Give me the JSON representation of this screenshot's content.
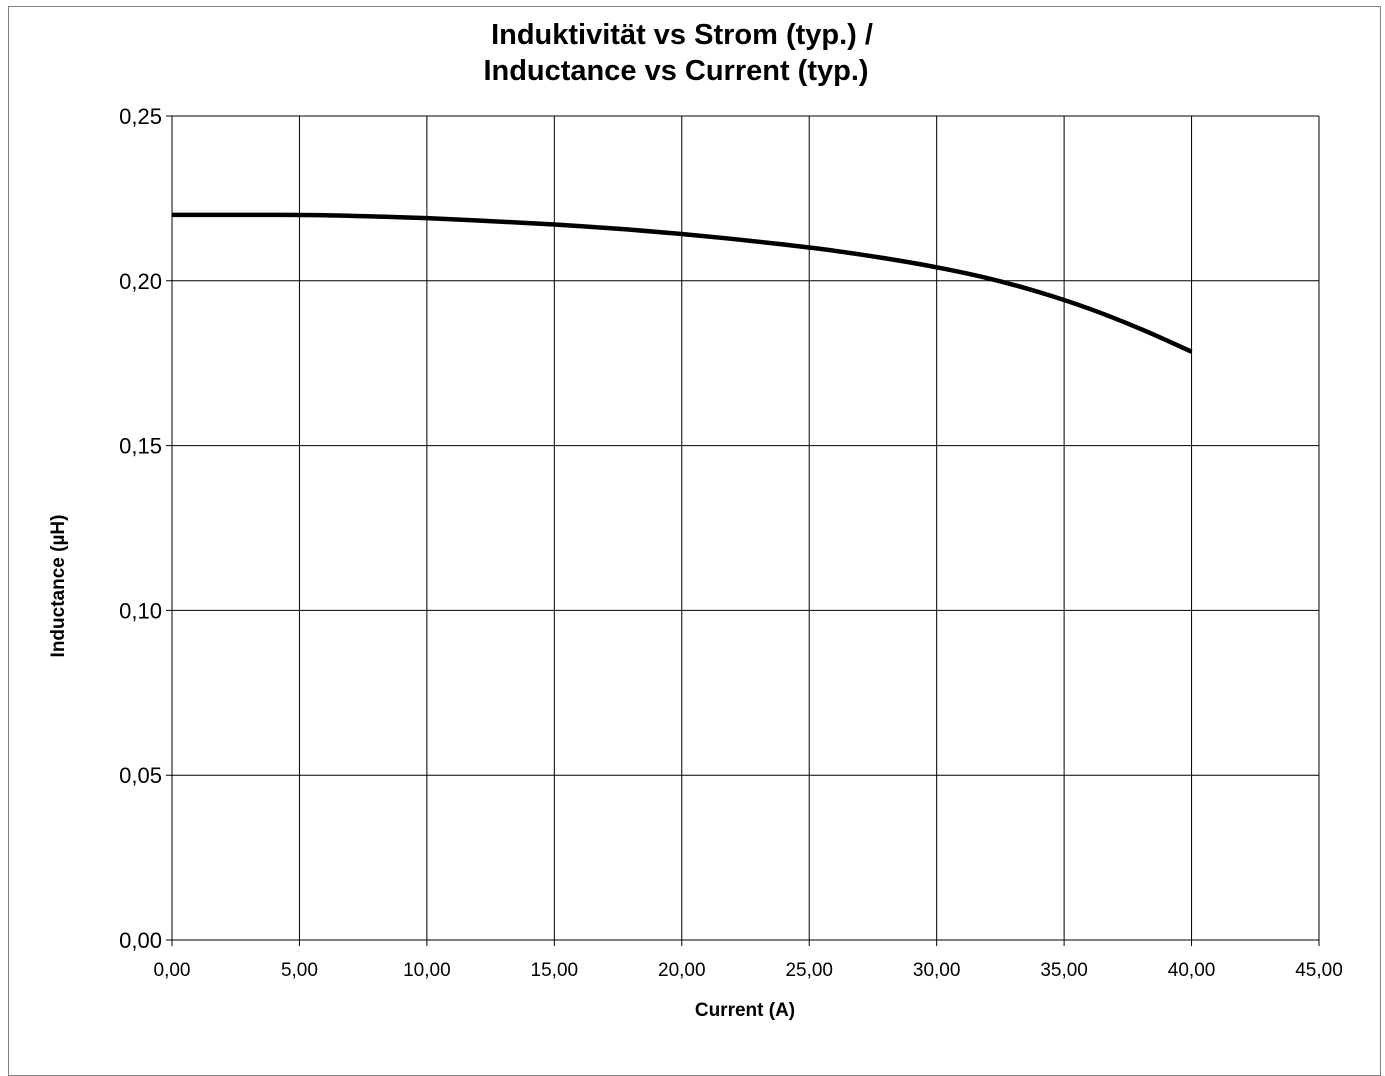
{
  "chart_data": {
    "type": "line",
    "title_line1": "Induktivität vs Strom (typ.) /",
    "title_line2": "Inductance vs Current (typ.)",
    "xlabel": "Current (A)",
    "ylabel": "Inductance (µH)",
    "xlim": [
      0,
      45
    ],
    "ylim": [
      0,
      0.25
    ],
    "xticks": [
      0,
      5,
      10,
      15,
      20,
      25,
      30,
      35,
      40,
      45
    ],
    "yticks": [
      0,
      0.05,
      0.1,
      0.15,
      0.2,
      0.25
    ],
    "xtick_labels": [
      "0,00",
      "5,00",
      "10,00",
      "15,00",
      "20,00",
      "25,00",
      "30,00",
      "35,00",
      "40,00",
      "45,00"
    ],
    "ytick_labels": [
      "0,00",
      "0,05",
      "0,10",
      "0,15",
      "0,20",
      "0,25"
    ],
    "grid": true,
    "series": [
      {
        "color": "#000000",
        "x": [
          0,
          2,
          4,
          6,
          8,
          10,
          12,
          14,
          16,
          18,
          20,
          22,
          24,
          26,
          28,
          30,
          32,
          34,
          36,
          38,
          40
        ],
        "y": [
          0.22,
          0.22,
          0.22,
          0.2199,
          0.2195,
          0.219,
          0.2183,
          0.2175,
          0.2166,
          0.2155,
          0.2142,
          0.2127,
          0.211,
          0.2091,
          0.2068,
          0.2041,
          0.2008,
          0.1966,
          0.1915,
          0.1854,
          0.1785
        ]
      }
    ]
  }
}
